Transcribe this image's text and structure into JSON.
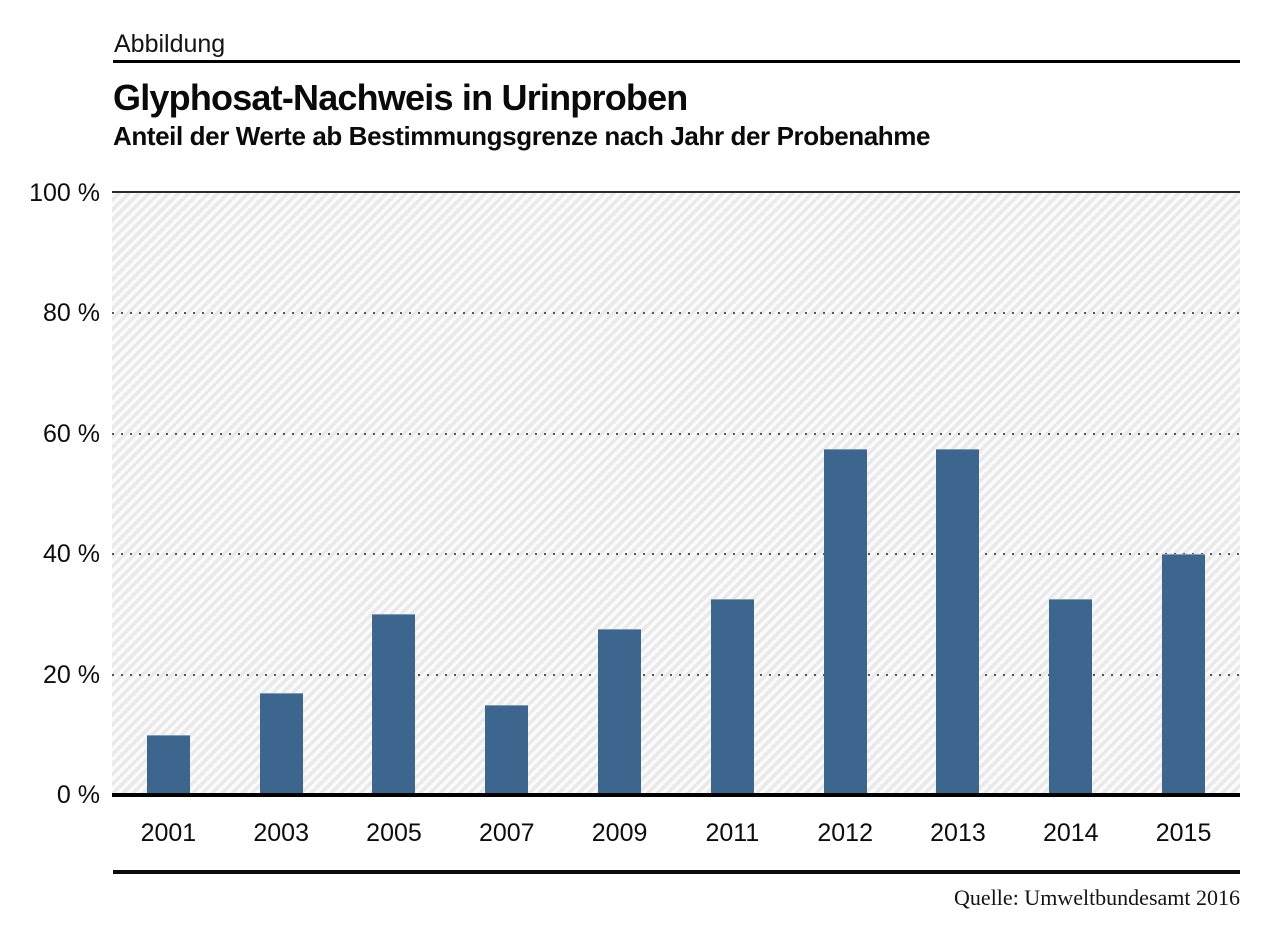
{
  "page": {
    "kicker": "Abbildung",
    "title": "Glyphosat-Nachweis in Urinproben",
    "subtitle": "Anteil der Werte ab Bestimmungsgrenze nach Jahr der Probenahme",
    "source": "Quelle: Umweltbundesamt 2016"
  },
  "chart_data": {
    "type": "bar",
    "title": "Glyphosat-Nachweis in Urinproben",
    "subtitle": "Anteil der Werte ab Bestimmungsgrenze nach Jahr der Probenahme",
    "categories": [
      "2001",
      "2003",
      "2005",
      "2007",
      "2009",
      "2011",
      "2012",
      "2013",
      "2014",
      "2015"
    ],
    "values": [
      10,
      17,
      30,
      15,
      27.5,
      32.5,
      57.5,
      57.5,
      32.5,
      40
    ],
    "unit": "%",
    "xlabel": "",
    "ylabel": "",
    "ylim": [
      0,
      100
    ],
    "yticks": [
      {
        "value": 100,
        "label": "100 %"
      },
      {
        "value": 80,
        "label": "80 %"
      },
      {
        "value": 60,
        "label": "60 %"
      },
      {
        "value": 40,
        "label": "40 %"
      },
      {
        "value": 20,
        "label": "20 %"
      },
      {
        "value": 0,
        "label": "0 %"
      }
    ],
    "dotted_gridlines_at": [
      80,
      60,
      40,
      20
    ],
    "grid": "dotted-horizontal",
    "legend": "none",
    "plot_background": "diagonal-hatch",
    "bar_color": "#3d668e",
    "source": "Quelle: Umweltbundesamt 2016"
  }
}
